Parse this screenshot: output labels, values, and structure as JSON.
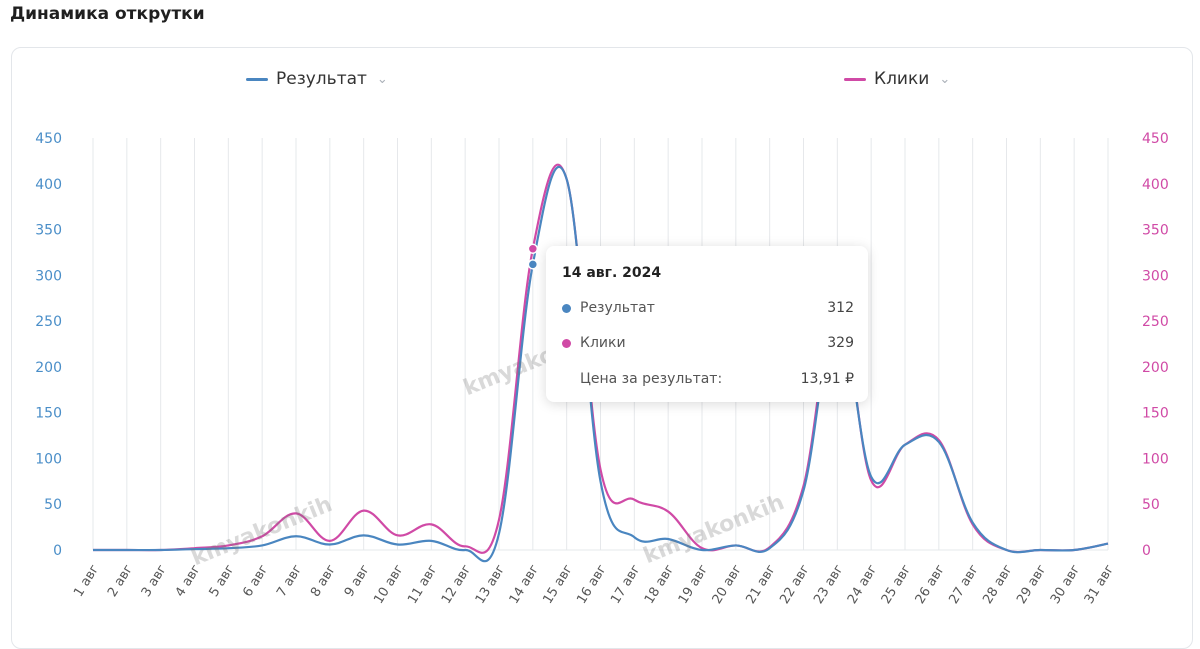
{
  "page": {
    "title": "Динамика открутки"
  },
  "legend": [
    {
      "label": "Результат",
      "color": "#4a86c0"
    },
    {
      "label": "Клики",
      "color": "#d04aa6"
    }
  ],
  "tooltip": {
    "date": "14 авг. 2024",
    "rows": [
      {
        "label": "Результат",
        "value": "312",
        "color": "#4a86c0"
      },
      {
        "label": "Клики",
        "value": "329",
        "color": "#d04aa6"
      },
      {
        "label": "Цена за результат:",
        "value": "13,91 ₽"
      }
    ]
  },
  "watermarks": [
    "kmyakonkih",
    "kmyakonkih",
    "kmyakonkih"
  ],
  "chart_data": {
    "type": "line",
    "title": "Динамика открутки",
    "categories": [
      "1 авг",
      "2 авг",
      "3 авг",
      "4 авг",
      "5 авг",
      "6 авг",
      "7 авг",
      "8 авг",
      "9 авг",
      "10 авг",
      "11 авг",
      "12 авг",
      "13 авг",
      "14 авг",
      "15 авг",
      "16 авг",
      "17 авг",
      "18 авг",
      "19 авг",
      "20 авг",
      "21 авг",
      "22 авг",
      "23 авг",
      "24 авг",
      "25 авг",
      "26 авг",
      "27 авг",
      "28 авг",
      "29 авг",
      "30 авг",
      "31 авг"
    ],
    "series": [
      {
        "name": "Результат",
        "axis": "left",
        "color": "#4a86c0",
        "values": [
          0,
          0,
          0,
          1,
          2,
          5,
          15,
          6,
          16,
          6,
          10,
          0,
          18,
          312,
          405,
          75,
          14,
          12,
          0,
          5,
          2,
          65,
          260,
          80,
          115,
          118,
          30,
          0,
          0,
          0,
          7
        ]
      },
      {
        "name": "Клики",
        "axis": "right",
        "color": "#d04aa6",
        "values": [
          0,
          0,
          0,
          2,
          5,
          15,
          40,
          10,
          43,
          16,
          28,
          4,
          33,
          329,
          405,
          88,
          55,
          42,
          2,
          5,
          3,
          70,
          270,
          76,
          115,
          120,
          28,
          0,
          0,
          0,
          7
        ]
      }
    ],
    "y_left": {
      "ylim": [
        0,
        450
      ],
      "ticks": [
        0,
        50,
        100,
        150,
        200,
        250,
        300,
        350,
        400,
        450
      ],
      "color": "#4a8ec8"
    },
    "y_right": {
      "ylim": [
        0,
        450
      ],
      "ticks": [
        0,
        50,
        100,
        150,
        200,
        250,
        300,
        350,
        400,
        450
      ],
      "color": "#d04aa6"
    },
    "highlight_index": 13,
    "grid": "vertical",
    "legend_position": "top"
  }
}
